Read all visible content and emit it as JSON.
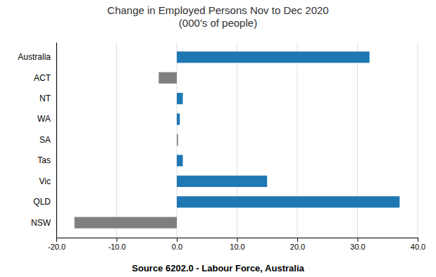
{
  "chart_data": {
    "type": "bar",
    "orientation": "horizontal",
    "title": "Change in Employed Persons Nov to Dec 2020\n(000's of people)",
    "categories": [
      "NSW",
      "QLD",
      "Vic",
      "Tas",
      "SA",
      "WA",
      "NT",
      "ACT",
      "Australia"
    ],
    "values": [
      -17.0,
      37.0,
      15.0,
      1.0,
      0.2,
      0.5,
      1.0,
      -3.0,
      32.0
    ],
    "colors": [
      "#7f7f7f",
      "#1f77b4",
      "#1f77b4",
      "#1f77b4",
      "#7f7f7f",
      "#1f77b4",
      "#1f77b4",
      "#7f7f7f",
      "#1f77b4"
    ],
    "xlim": [
      -20.0,
      40.0
    ],
    "xticks": [
      {
        "value": -20.0,
        "label": "-20.0"
      },
      {
        "value": -10.0,
        "label": "-10.0"
      },
      {
        "value": 0.0,
        "label": "0.0"
      },
      {
        "value": 10.0,
        "label": "10.0"
      },
      {
        "value": 20.0,
        "label": "20.0"
      },
      {
        "value": 30.0,
        "label": "30.0"
      },
      {
        "value": 40.0,
        "label": "40.0"
      }
    ],
    "grid": true,
    "annotations": [
      "Source 6202.0 - Labour Force, Australia"
    ]
  }
}
